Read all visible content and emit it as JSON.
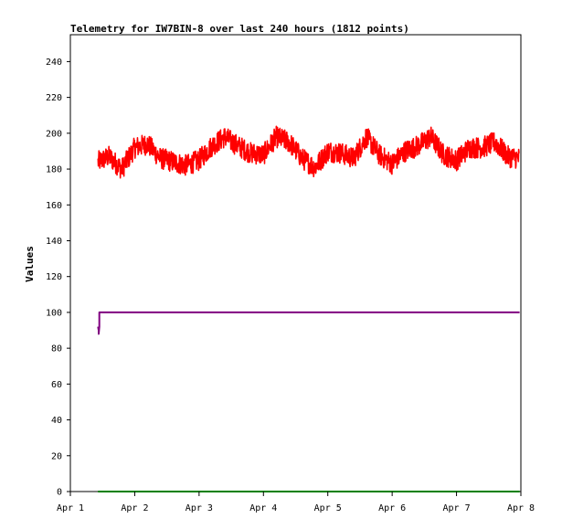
{
  "chart_data": {
    "type": "line",
    "title": "Telemetry for IW7BIN-8 over last 240 hours (1812 points)",
    "ylabel": "Values",
    "xlabel": "",
    "ylim": [
      0,
      255
    ],
    "xlim": [
      0,
      7
    ],
    "yticks": [
      0,
      20,
      40,
      60,
      80,
      100,
      120,
      140,
      160,
      180,
      200,
      220,
      240
    ],
    "xticks": [
      {
        "value": 0,
        "label": "Apr 1"
      },
      {
        "value": 1,
        "label": "Apr 2"
      },
      {
        "value": 2,
        "label": "Apr 3"
      },
      {
        "value": 3,
        "label": "Apr 4"
      },
      {
        "value": 4,
        "label": "Apr 5"
      },
      {
        "value": 5,
        "label": "Apr 6"
      },
      {
        "value": 6,
        "label": "Apr 7"
      },
      {
        "value": 7,
        "label": "Apr 8"
      }
    ],
    "grid": false,
    "legend": "none",
    "series": [
      {
        "color": "#ff0000",
        "style": "noisy",
        "x": [
          0.43,
          0.6,
          0.8,
          1.0,
          1.2,
          1.4,
          1.6,
          1.8,
          2.0,
          2.2,
          2.4,
          2.6,
          2.8,
          3.0,
          3.2,
          3.4,
          3.6,
          3.8,
          4.0,
          4.2,
          4.4,
          4.6,
          4.8,
          5.0,
          5.2,
          5.4,
          5.6,
          5.8,
          6.0,
          6.2,
          6.4,
          6.6,
          6.8,
          6.98
        ],
        "values": [
          184,
          187,
          180,
          192,
          194,
          186,
          184,
          182,
          185,
          193,
          198,
          193,
          189,
          188,
          198,
          195,
          186,
          181,
          190,
          189,
          186,
          198,
          188,
          183,
          190,
          193,
          198,
          188,
          185,
          192,
          192,
          195,
          187,
          186
        ]
      },
      {
        "color": "#800080",
        "style": "steps",
        "x": [
          0.43,
          0.44,
          0.44,
          0.45,
          0.45,
          6.98
        ],
        "values": [
          92,
          90,
          88,
          92,
          100,
          100
        ]
      },
      {
        "color": "#008000",
        "style": "steps",
        "x": [
          0.43,
          6.98
        ],
        "values": [
          0,
          0
        ]
      }
    ]
  }
}
